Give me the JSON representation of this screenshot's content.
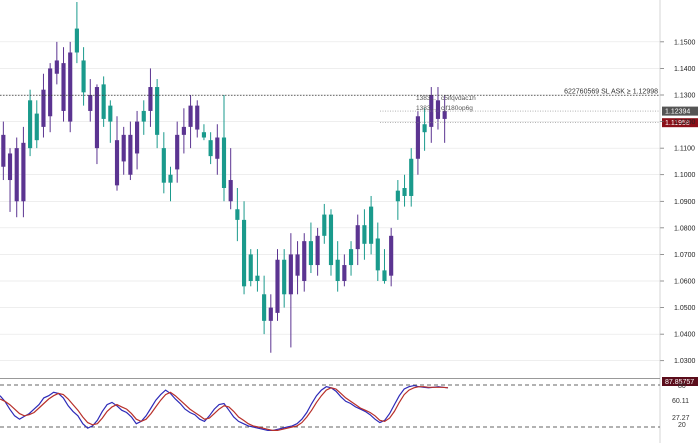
{
  "chart_data": [
    {
      "type": "candlestick",
      "title": "",
      "xlabel": "",
      "ylabel": "",
      "ylim": [
        1.025,
        1.165
      ],
      "y_ticks": [
        "1.1500",
        "1.1400",
        "1.1300",
        "1.1200",
        "1.1100",
        "1.1000",
        "1.0900",
        "1.0800",
        "1.0700",
        "1.0600",
        "1.0500",
        "1.0400",
        "1.0300"
      ],
      "candles": [
        {
          "o": 1.115,
          "h": 1.12,
          "l": 1.098,
          "c": 1.103,
          "bull": false
        },
        {
          "o": 1.098,
          "h": 1.11,
          "l": 1.086,
          "c": 1.108,
          "bull": false
        },
        {
          "o": 1.09,
          "h": 1.114,
          "l": 1.084,
          "c": 1.11,
          "bull": false
        },
        {
          "o": 1.112,
          "h": 1.118,
          "l": 1.084,
          "c": 1.09,
          "bull": false
        },
        {
          "o": 1.11,
          "h": 1.132,
          "l": 1.107,
          "c": 1.128,
          "bull": true
        },
        {
          "o": 1.113,
          "h": 1.128,
          "l": 1.11,
          "c": 1.123,
          "bull": true
        },
        {
          "o": 1.118,
          "h": 1.138,
          "l": 1.114,
          "c": 1.132,
          "bull": false
        },
        {
          "o": 1.122,
          "h": 1.142,
          "l": 1.116,
          "c": 1.14,
          "bull": false
        },
        {
          "o": 1.138,
          "h": 1.15,
          "l": 1.134,
          "c": 1.143,
          "bull": false
        },
        {
          "o": 1.142,
          "h": 1.148,
          "l": 1.12,
          "c": 1.124,
          "bull": false
        },
        {
          "o": 1.12,
          "h": 1.15,
          "l": 1.116,
          "c": 1.146,
          "bull": false
        },
        {
          "o": 1.146,
          "h": 1.165,
          "l": 1.142,
          "c": 1.155,
          "bull": true
        },
        {
          "o": 1.143,
          "h": 1.148,
          "l": 1.126,
          "c": 1.131,
          "bull": true
        },
        {
          "o": 1.13,
          "h": 1.136,
          "l": 1.12,
          "c": 1.124,
          "bull": false
        },
        {
          "o": 1.11,
          "h": 1.134,
          "l": 1.104,
          "c": 1.133,
          "bull": false
        },
        {
          "o": 1.134,
          "h": 1.137,
          "l": 1.118,
          "c": 1.121,
          "bull": true
        },
        {
          "o": 1.12,
          "h": 1.128,
          "l": 1.112,
          "c": 1.126,
          "bull": true
        },
        {
          "o": 1.113,
          "h": 1.122,
          "l": 1.094,
          "c": 1.096,
          "bull": false
        },
        {
          "o": 1.105,
          "h": 1.118,
          "l": 1.1,
          "c": 1.115,
          "bull": false
        },
        {
          "o": 1.115,
          "h": 1.12,
          "l": 1.098,
          "c": 1.1,
          "bull": false
        },
        {
          "o": 1.108,
          "h": 1.124,
          "l": 1.102,
          "c": 1.12,
          "bull": false
        },
        {
          "o": 1.12,
          "h": 1.128,
          "l": 1.115,
          "c": 1.124,
          "bull": true
        },
        {
          "o": 1.124,
          "h": 1.14,
          "l": 1.118,
          "c": 1.133,
          "bull": false
        },
        {
          "o": 1.133,
          "h": 1.136,
          "l": 1.11,
          "c": 1.115,
          "bull": true
        },
        {
          "o": 1.11,
          "h": 1.116,
          "l": 1.093,
          "c": 1.097,
          "bull": true
        },
        {
          "o": 1.097,
          "h": 1.103,
          "l": 1.09,
          "c": 1.1,
          "bull": true
        },
        {
          "o": 1.102,
          "h": 1.12,
          "l": 1.097,
          "c": 1.115,
          "bull": false
        },
        {
          "o": 1.115,
          "h": 1.125,
          "l": 1.108,
          "c": 1.118,
          "bull": false
        },
        {
          "o": 1.118,
          "h": 1.13,
          "l": 1.11,
          "c": 1.126,
          "bull": false
        },
        {
          "o": 1.126,
          "h": 1.128,
          "l": 1.114,
          "c": 1.117,
          "bull": false
        },
        {
          "o": 1.116,
          "h": 1.119,
          "l": 1.113,
          "c": 1.114,
          "bull": true
        },
        {
          "o": 1.113,
          "h": 1.116,
          "l": 1.104,
          "c": 1.107,
          "bull": true
        },
        {
          "o": 1.106,
          "h": 1.119,
          "l": 1.1,
          "c": 1.114,
          "bull": false
        },
        {
          "o": 1.114,
          "h": 1.13,
          "l": 1.09,
          "c": 1.095,
          "bull": true
        },
        {
          "o": 1.098,
          "h": 1.11,
          "l": 1.087,
          "c": 1.09,
          "bull": false
        },
        {
          "o": 1.087,
          "h": 1.095,
          "l": 1.075,
          "c": 1.083,
          "bull": true
        },
        {
          "o": 1.083,
          "h": 1.09,
          "l": 1.055,
          "c": 1.058,
          "bull": true
        },
        {
          "o": 1.06,
          "h": 1.072,
          "l": 1.058,
          "c": 1.07,
          "bull": true
        },
        {
          "o": 1.062,
          "h": 1.072,
          "l": 1.056,
          "c": 1.06,
          "bull": true
        },
        {
          "o": 1.055,
          "h": 1.062,
          "l": 1.04,
          "c": 1.045,
          "bull": true
        },
        {
          "o": 1.045,
          "h": 1.055,
          "l": 1.033,
          "c": 1.05,
          "bull": false
        },
        {
          "o": 1.048,
          "h": 1.072,
          "l": 1.045,
          "c": 1.068,
          "bull": false
        },
        {
          "o": 1.068,
          "h": 1.072,
          "l": 1.05,
          "c": 1.055,
          "bull": true
        },
        {
          "o": 1.055,
          "h": 1.078,
          "l": 1.035,
          "c": 1.07,
          "bull": false
        },
        {
          "o": 1.07,
          "h": 1.075,
          "l": 1.055,
          "c": 1.062,
          "bull": false
        },
        {
          "o": 1.06,
          "h": 1.078,
          "l": 1.056,
          "c": 1.075,
          "bull": false
        },
        {
          "o": 1.075,
          "h": 1.082,
          "l": 1.063,
          "c": 1.066,
          "bull": true
        },
        {
          "o": 1.066,
          "h": 1.08,
          "l": 1.062,
          "c": 1.077,
          "bull": false
        },
        {
          "o": 1.077,
          "h": 1.089,
          "l": 1.074,
          "c": 1.085,
          "bull": true
        },
        {
          "o": 1.085,
          "h": 1.087,
          "l": 1.062,
          "c": 1.066,
          "bull": true
        },
        {
          "o": 1.068,
          "h": 1.075,
          "l": 1.056,
          "c": 1.06,
          "bull": true
        },
        {
          "o": 1.06,
          "h": 1.07,
          "l": 1.058,
          "c": 1.066,
          "bull": false
        },
        {
          "o": 1.066,
          "h": 1.075,
          "l": 1.062,
          "c": 1.072,
          "bull": true
        },
        {
          "o": 1.072,
          "h": 1.085,
          "l": 1.066,
          "c": 1.081,
          "bull": false
        },
        {
          "o": 1.081,
          "h": 1.087,
          "l": 1.068,
          "c": 1.074,
          "bull": true
        },
        {
          "o": 1.074,
          "h": 1.092,
          "l": 1.07,
          "c": 1.088,
          "bull": true
        },
        {
          "o": 1.076,
          "h": 1.082,
          "l": 1.06,
          "c": 1.064,
          "bull": true
        },
        {
          "o": 1.064,
          "h": 1.072,
          "l": 1.059,
          "c": 1.06,
          "bull": true
        },
        {
          "o": 1.062,
          "h": 1.08,
          "l": 1.058,
          "c": 1.077,
          "bull": false
        },
        {
          "o": 1.09,
          "h": 1.098,
          "l": 1.083,
          "c": 1.094,
          "bull": true
        },
        {
          "o": 1.095,
          "h": 1.1,
          "l": 1.088,
          "c": 1.092,
          "bull": true
        },
        {
          "o": 1.092,
          "h": 1.11,
          "l": 1.088,
          "c": 1.106,
          "bull": true
        },
        {
          "o": 1.106,
          "h": 1.124,
          "l": 1.1,
          "c": 1.122,
          "bull": false
        },
        {
          "o": 1.116,
          "h": 1.125,
          "l": 1.109,
          "c": 1.119,
          "bull": true
        },
        {
          "o": 1.118,
          "h": 1.133,
          "l": 1.112,
          "c": 1.13,
          "bull": false
        },
        {
          "o": 1.128,
          "h": 1.133,
          "l": 1.117,
          "c": 1.121,
          "bull": false
        },
        {
          "o": 1.121,
          "h": 1.13,
          "l": 1.112,
          "c": 1.124,
          "bull": false
        }
      ],
      "price_levels": [
        {
          "price": 1.1299,
          "text": "622760569 SL ASK ≥ 1.12998",
          "color": "#333333"
        },
        {
          "price": 1.12394,
          "text": "1.12394",
          "color": "#555555"
        },
        {
          "price": 1.11958,
          "text": "1.11958",
          "color": "#8b0f18"
        }
      ],
      "trade_labels": [
        "1383...",
        "c5ifqvdac1h",
        "1383...",
        "cjf180op6g"
      ],
      "colors": {
        "bull": "#1a9a8c",
        "bear": "#5b3491",
        "grid": "#dddddd",
        "wick": "#333333"
      }
    },
    {
      "type": "line",
      "title": "",
      "ylim": [
        0,
        100
      ],
      "y_ticks": [
        "80",
        "60.11",
        "27.27",
        "20"
      ],
      "current_value_label": "87.85757",
      "levels": [
        80,
        20
      ],
      "series": [
        {
          "color": "#2d2ab8",
          "values": [
            72,
            62,
            48,
            36,
            30,
            35,
            40,
            48,
            56,
            68,
            72,
            78,
            76,
            68,
            54,
            44,
            36,
            22,
            14,
            18,
            28,
            44,
            56,
            60,
            54,
            46,
            42,
            34,
            22,
            26,
            36,
            50,
            64,
            74,
            82,
            76,
            66,
            58,
            48,
            42,
            38,
            30,
            26,
            36,
            48,
            56,
            58,
            46,
            34,
            26,
            22,
            18,
            16,
            14,
            12,
            10,
            10,
            12,
            14,
            16,
            18,
            22,
            30,
            42,
            58,
            72,
            82,
            88,
            86,
            80,
            70,
            62,
            58,
            52,
            48,
            44,
            38,
            30,
            24,
            28,
            40,
            56,
            72,
            84,
            88,
            90,
            88,
            87,
            86,
            87,
            88,
            87,
            86
          ]
        },
        {
          "color": "#b8302a",
          "values": [
            66,
            62,
            56,
            48,
            40,
            36,
            38,
            42,
            50,
            58,
            66,
            72,
            76,
            74,
            66,
            56,
            46,
            34,
            24,
            20,
            22,
            32,
            44,
            52,
            56,
            52,
            48,
            40,
            30,
            26,
            30,
            40,
            52,
            64,
            74,
            78,
            72,
            64,
            56,
            48,
            42,
            36,
            30,
            32,
            40,
            48,
            54,
            52,
            44,
            34,
            28,
            22,
            18,
            16,
            14,
            12,
            10,
            10,
            12,
            14,
            16,
            18,
            24,
            34,
            46,
            60,
            72,
            82,
            86,
            84,
            76,
            68,
            62,
            56,
            50,
            46,
            42,
            36,
            28,
            26,
            32,
            44,
            60,
            74,
            82,
            86,
            88,
            88,
            87,
            87,
            87,
            87,
            86
          ]
        }
      ]
    }
  ]
}
